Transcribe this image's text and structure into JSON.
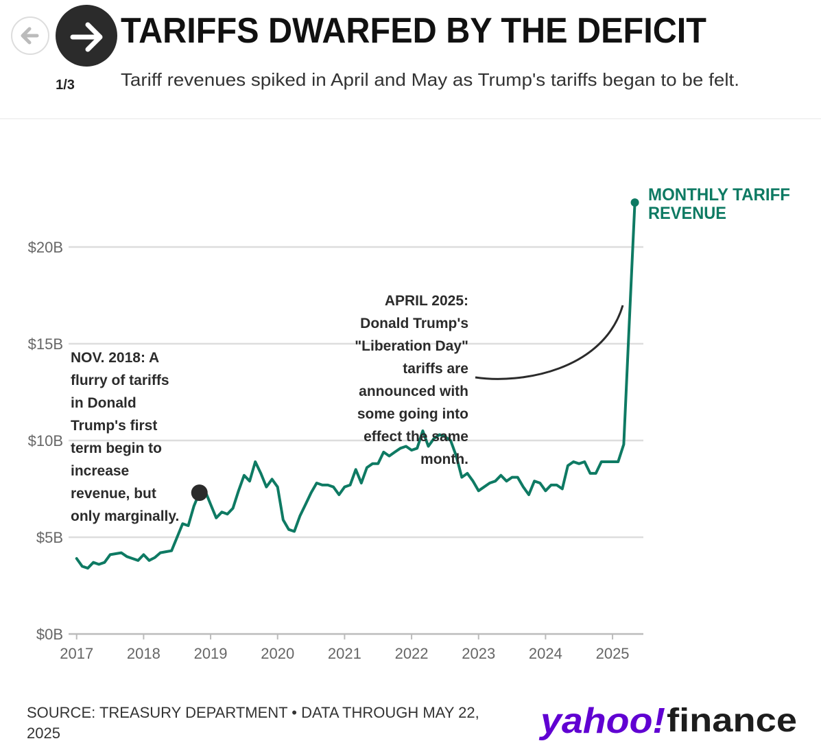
{
  "nav": {
    "counter": "1/3"
  },
  "logo": {
    "brand": "yahoo!",
    "product": "finance"
  },
  "chart_data": {
    "type": "line",
    "title": "TARIFFS DWARFED BY THE DEFICIT",
    "subtitle": "Tariff revenues spiked in April and May as Trump's tariffs began to be felt.",
    "source_lines": [
      "SOURCE: TREASURY DEPARTMENT • DATA THROUGH MAY 22,",
      "2025"
    ],
    "xlim": [
      2016.88,
      2025.46
    ],
    "xticks": [
      2017,
      2018,
      2019,
      2020,
      2021,
      2022,
      2023,
      2024,
      2025
    ],
    "ylim": [
      0,
      20
    ],
    "yticks": [
      {
        "value": 0,
        "label": "$0B"
      },
      {
        "value": 5,
        "label": "$5B"
      },
      {
        "value": 10,
        "label": "$10B"
      },
      {
        "value": 15,
        "label": "$15B"
      },
      {
        "value": 20,
        "label": "$20B"
      }
    ],
    "grid": true,
    "series": [
      {
        "name": "MONTHLY TARIFF REVENUE",
        "name_lines": [
          "MONTHLY TARIFF",
          "REVENUE"
        ],
        "color": "#0e7a63",
        "x": [
          2017,
          2017.083,
          2017.167,
          2017.25,
          2017.333,
          2017.417,
          2017.5,
          2017.583,
          2017.667,
          2017.75,
          2017.833,
          2017.917,
          2018,
          2018.083,
          2018.167,
          2018.25,
          2018.333,
          2018.417,
          2018.5,
          2018.583,
          2018.667,
          2018.75,
          2018.833,
          2018.917,
          2019,
          2019.083,
          2019.167,
          2019.25,
          2019.333,
          2019.417,
          2019.5,
          2019.583,
          2019.667,
          2019.75,
          2019.833,
          2019.917,
          2020,
          2020.083,
          2020.167,
          2020.25,
          2020.333,
          2020.417,
          2020.5,
          2020.583,
          2020.667,
          2020.75,
          2020.833,
          2020.917,
          2021,
          2021.083,
          2021.167,
          2021.25,
          2021.333,
          2021.417,
          2021.5,
          2021.583,
          2021.667,
          2021.75,
          2021.833,
          2021.917,
          2022,
          2022.083,
          2022.167,
          2022.25,
          2022.333,
          2022.417,
          2022.5,
          2022.583,
          2022.667,
          2022.75,
          2022.833,
          2022.917,
          2023,
          2023.083,
          2023.167,
          2023.25,
          2023.333,
          2023.417,
          2023.5,
          2023.583,
          2023.667,
          2023.75,
          2023.833,
          2023.917,
          2024,
          2024.083,
          2024.167,
          2024.25,
          2024.333,
          2024.417,
          2024.5,
          2024.583,
          2024.667,
          2024.75,
          2024.833,
          2024.917,
          2025,
          2025.083,
          2025.167,
          2025.25,
          2025.333
        ],
        "values": [
          3.9,
          3.5,
          3.4,
          3.7,
          3.6,
          3.7,
          4.1,
          4.15,
          4.2,
          4.0,
          3.9,
          3.8,
          4.1,
          3.8,
          3.95,
          4.2,
          4.25,
          4.3,
          5.0,
          5.7,
          5.6,
          6.6,
          7.3,
          7.4,
          6.7,
          6.0,
          6.3,
          6.2,
          6.5,
          7.4,
          8.2,
          7.9,
          8.9,
          8.3,
          7.6,
          8.0,
          7.6,
          5.9,
          5.4,
          5.3,
          6.1,
          6.7,
          7.3,
          7.8,
          7.7,
          7.7,
          7.6,
          7.2,
          7.6,
          7.7,
          8.5,
          7.8,
          8.6,
          8.8,
          8.8,
          9.4,
          9.2,
          9.4,
          9.6,
          9.7,
          9.5,
          9.6,
          10.5,
          9.7,
          10.1,
          10.3,
          10.2,
          10.0,
          9.2,
          8.1,
          8.3,
          7.9,
          7.4,
          7.6,
          7.8,
          7.9,
          8.2,
          7.9,
          8.1,
          8.1,
          7.6,
          7.2,
          7.9,
          7.8,
          7.4,
          7.7,
          7.7,
          7.5,
          8.7,
          8.9,
          8.8,
          8.9,
          8.3,
          8.3,
          8.9,
          8.9,
          8.9,
          8.9,
          9.8,
          16.1,
          22.3
        ]
      }
    ],
    "annotations": [
      {
        "lines": [
          "NOV. 2018: A",
          "flurry of tariffs",
          "in Donald",
          "Trump's first",
          "term begin to",
          "increase",
          "revenue, but",
          "only marginally."
        ]
      },
      {
        "lines": [
          "APRIL 2025:",
          "Donald Trump's",
          "\"Liberation Day\"",
          "tariffs are",
          "announced with",
          "some going into",
          "effect the same",
          "month."
        ]
      }
    ]
  }
}
